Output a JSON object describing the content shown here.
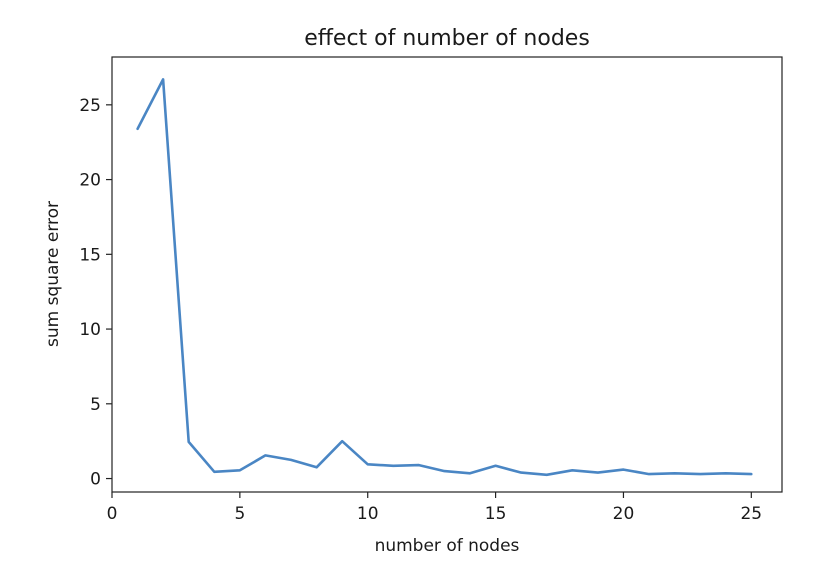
{
  "chart_data": {
    "type": "line",
    "title": "effect of number of nodes",
    "xlabel": "number of nodes",
    "ylabel": "sum square error",
    "xlim": [
      0,
      26.2
    ],
    "ylim": [
      -0.9,
      28.2
    ],
    "xticks": [
      0,
      5,
      10,
      15,
      20,
      25
    ],
    "yticks": [
      0,
      5,
      10,
      15,
      20,
      25
    ],
    "grid": false,
    "color": "#4a86c4",
    "x": [
      1,
      2,
      3,
      4,
      5,
      6,
      7,
      8,
      9,
      10,
      11,
      12,
      13,
      14,
      15,
      16,
      17,
      18,
      19,
      20,
      21,
      22,
      23,
      24,
      25
    ],
    "series": [
      {
        "values": [
          23.4,
          26.7,
          2.45,
          0.45,
          0.55,
          1.55,
          1.25,
          0.75,
          2.5,
          0.95,
          0.85,
          0.9,
          0.5,
          0.35,
          0.85,
          0.4,
          0.25,
          0.55,
          0.4,
          0.6,
          0.3,
          0.35,
          0.3,
          0.35,
          0.3
        ]
      }
    ]
  }
}
